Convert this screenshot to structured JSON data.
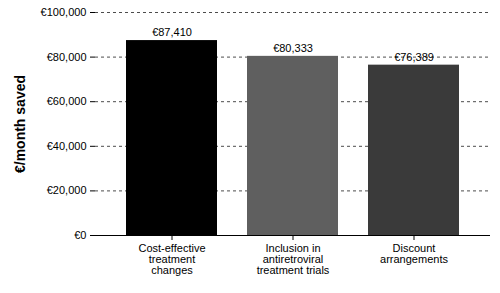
{
  "chart_data": {
    "type": "bar",
    "y_label": "€/month saved",
    "categories": [
      "Cost-effective\ntreatment\nchanges",
      "Inclusion in\nantiretroviral\ntreatment trials",
      "Discount\narrangements"
    ],
    "values": [
      87410,
      80333,
      76389
    ],
    "value_labels": [
      "€87,410",
      "€80,333",
      "€76,389"
    ],
    "colors": [
      "#000000",
      "#5f5f5f",
      "#3a3a3a"
    ],
    "ylim": [
      0,
      100000
    ],
    "yticks": [
      {
        "value": 0,
        "label": "€0"
      },
      {
        "value": 20000,
        "label": "€20,000"
      },
      {
        "value": 40000,
        "label": "€40,000"
      },
      {
        "value": 60000,
        "label": "€60,000"
      },
      {
        "value": 80000,
        "label": "€80,000"
      },
      {
        "value": 100000,
        "label": "€100,000"
      }
    ],
    "grid": true,
    "data_labels": true
  }
}
